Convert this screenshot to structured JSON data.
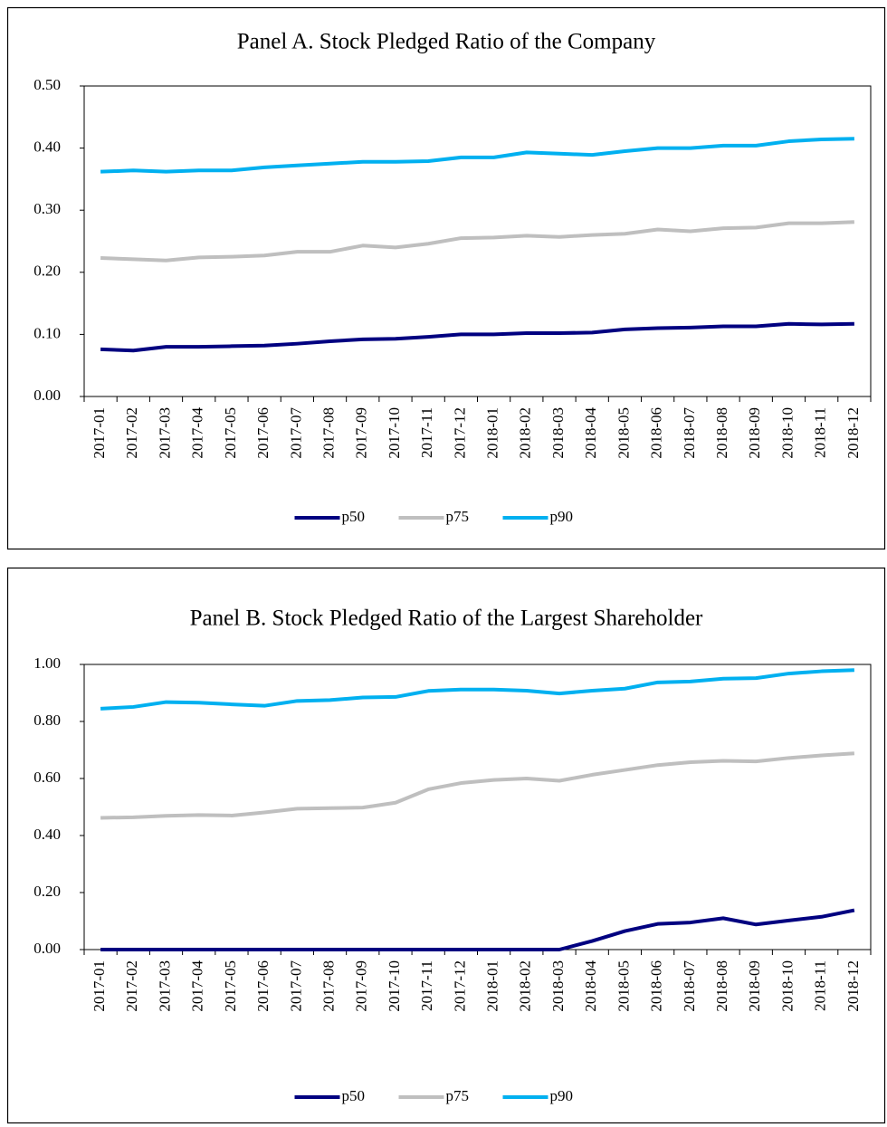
{
  "chart_data": [
    {
      "type": "line",
      "title": "Panel A. Stock Pledged Ratio of the Company",
      "categories": [
        "2017-01",
        "2017-02",
        "2017-03",
        "2017-04",
        "2017-05",
        "2017-06",
        "2017-07",
        "2017-08",
        "2017-09",
        "2017-10",
        "2017-11",
        "2017-12",
        "2018-01",
        "2018-02",
        "2018-03",
        "2018-04",
        "2018-05",
        "2018-06",
        "2018-07",
        "2018-08",
        "2018-09",
        "2018-10",
        "2018-11",
        "2018-12"
      ],
      "series": [
        {
          "name": "p50",
          "color": "#000080",
          "values": [
            0.076,
            0.074,
            0.08,
            0.08,
            0.081,
            0.082,
            0.085,
            0.089,
            0.092,
            0.093,
            0.096,
            0.1,
            0.1,
            0.102,
            0.102,
            0.103,
            0.108,
            0.11,
            0.111,
            0.113,
            0.113,
            0.117,
            0.116,
            0.117
          ]
        },
        {
          "name": "p75",
          "color": "#bfbfbf",
          "values": [
            0.223,
            0.221,
            0.219,
            0.224,
            0.225,
            0.227,
            0.233,
            0.233,
            0.243,
            0.24,
            0.246,
            0.255,
            0.256,
            0.259,
            0.257,
            0.26,
            0.262,
            0.269,
            0.266,
            0.271,
            0.272,
            0.279,
            0.279,
            0.281
          ]
        },
        {
          "name": "p90",
          "color": "#00b0f0",
          "values": [
            0.362,
            0.364,
            0.362,
            0.364,
            0.364,
            0.369,
            0.372,
            0.375,
            0.378,
            0.378,
            0.379,
            0.385,
            0.385,
            0.393,
            0.391,
            0.389,
            0.395,
            0.4,
            0.4,
            0.404,
            0.404,
            0.411,
            0.414,
            0.415
          ]
        }
      ],
      "ylim": [
        0,
        0.5
      ],
      "yticks": [
        {
          "value": 0,
          "label": "0.00"
        },
        {
          "value": 0.1,
          "label": "0.10"
        },
        {
          "value": 0.2,
          "label": "0.20"
        },
        {
          "value": 0.3,
          "label": "0.30"
        },
        {
          "value": 0.4,
          "label": "0.40"
        },
        {
          "value": 0.5,
          "label": "0.50"
        }
      ],
      "grid": false,
      "legend": "bottom"
    },
    {
      "type": "line",
      "title": "Panel B. Stock Pledged Ratio of the Largest Shareholder",
      "categories": [
        "2017-01",
        "2017-02",
        "2017-03",
        "2017-04",
        "2017-05",
        "2017-06",
        "2017-07",
        "2017-08",
        "2017-09",
        "2017-10",
        "2017-11",
        "2017-12",
        "2018-01",
        "2018-02",
        "2018-03",
        "2018-04",
        "2018-05",
        "2018-06",
        "2018-07",
        "2018-08",
        "2018-09",
        "2018-10",
        "2018-11",
        "2018-12"
      ],
      "series": [
        {
          "name": "p50",
          "color": "#000080",
          "values": [
            0,
            0,
            0,
            0,
            0,
            0,
            0,
            0,
            0,
            0,
            0,
            0,
            0,
            0,
            0,
            0.03,
            0.065,
            0.09,
            0.095,
            0.11,
            0.088,
            0.102,
            0.115,
            0.138
          ]
        },
        {
          "name": "p75",
          "color": "#bfbfbf",
          "values": [
            0.462,
            0.464,
            0.469,
            0.472,
            0.47,
            0.481,
            0.494,
            0.496,
            0.498,
            0.515,
            0.562,
            0.584,
            0.595,
            0.6,
            0.592,
            0.613,
            0.63,
            0.647,
            0.657,
            0.662,
            0.66,
            0.672,
            0.681,
            0.688
          ]
        },
        {
          "name": "p90",
          "color": "#00b0f0",
          "values": [
            0.845,
            0.851,
            0.868,
            0.866,
            0.86,
            0.855,
            0.872,
            0.875,
            0.884,
            0.886,
            0.907,
            0.912,
            0.912,
            0.908,
            0.898,
            0.908,
            0.915,
            0.937,
            0.94,
            0.95,
            0.952,
            0.968,
            0.976,
            0.98
          ]
        }
      ],
      "ylim": [
        0,
        1
      ],
      "yticks": [
        {
          "value": 0,
          "label": "0.00"
        },
        {
          "value": 0.2,
          "label": "0.20"
        },
        {
          "value": 0.4,
          "label": "0.40"
        },
        {
          "value": 0.6,
          "label": "0.60"
        },
        {
          "value": 0.8,
          "label": "0.80"
        },
        {
          "value": 1,
          "label": "1.00"
        }
      ],
      "grid": false,
      "legend": "bottom"
    }
  ]
}
